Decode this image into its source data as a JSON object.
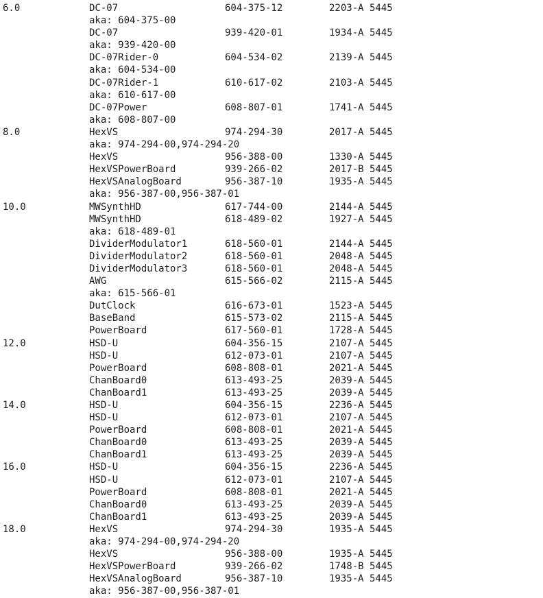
{
  "listing": {
    "slots": [
      {
        "slot": "6.0",
        "lines": [
          {
            "name": "DC-07",
            "part": "604-375-12",
            "serial": "2203-A 5445"
          },
          {
            "name": "aka: 604-375-00"
          },
          {
            "name": "DC-07",
            "part": "939-420-01",
            "serial": "1934-A 5445"
          },
          {
            "name": "aka: 939-420-00"
          },
          {
            "name": "DC-07Rider-0",
            "part": "604-534-02",
            "serial": "2139-A 5445"
          },
          {
            "name": "aka: 604-534-00"
          },
          {
            "name": "DC-07Rider-1",
            "part": "610-617-02",
            "serial": "2103-A 5445"
          },
          {
            "name": "aka: 610-617-00"
          },
          {
            "name": "DC-07Power",
            "part": "608-807-01",
            "serial": "1741-A 5445"
          },
          {
            "name": "aka: 608-807-00"
          }
        ]
      },
      {
        "slot": "8.0",
        "lines": [
          {
            "name": "HexVS",
            "part": "974-294-30",
            "serial": "2017-A 5445"
          },
          {
            "name": "aka: 974-294-00,974-294-20"
          },
          {
            "name": "HexVS",
            "part": "956-388-00",
            "serial": "1330-A 5445"
          },
          {
            "name": "HexVSPowerBoard",
            "part": "939-266-02",
            "serial": "2017-B 5445"
          },
          {
            "name": "HexVSAnalogBoard",
            "part": "956-387-10",
            "serial": "1935-A 5445"
          },
          {
            "name": "aka: 956-387-00,956-387-01"
          }
        ]
      },
      {
        "slot": "10.0",
        "lines": [
          {
            "name": "MWSynthHD",
            "part": "617-744-00",
            "serial": "2144-A 5445"
          },
          {
            "name": "MWSynthHD",
            "part": "618-489-02",
            "serial": "1927-A 5445"
          },
          {
            "name": "aka: 618-489-01"
          },
          {
            "name": "DividerModulator1",
            "part": "618-560-01",
            "serial": "2144-A 5445"
          },
          {
            "name": "DividerModulator2",
            "part": "618-560-01",
            "serial": "2048-A 5445"
          },
          {
            "name": "DividerModulator3",
            "part": "618-560-01",
            "serial": "2048-A 5445"
          },
          {
            "name": "AWG",
            "part": "615-566-02",
            "serial": "2115-A 5445"
          },
          {
            "name": "aka: 615-566-01"
          },
          {
            "name": "DutClock",
            "part": "616-673-01",
            "serial": "1523-A 5445"
          },
          {
            "name": "BaseBand",
            "part": "615-573-02",
            "serial": "2115-A 5445"
          },
          {
            "name": "PowerBoard",
            "part": "617-560-01",
            "serial": "1728-A 5445"
          }
        ]
      },
      {
        "slot": "12.0",
        "lines": [
          {
            "name": "HSD-U",
            "part": "604-356-15",
            "serial": "2107-A 5445"
          },
          {
            "name": "HSD-U",
            "part": "612-073-01",
            "serial": "2107-A 5445"
          },
          {
            "name": "PowerBoard",
            "part": "608-808-01",
            "serial": "2021-A 5445"
          },
          {
            "name": "ChanBoard0",
            "part": "613-493-25",
            "serial": "2039-A 5445"
          },
          {
            "name": "ChanBoard1",
            "part": "613-493-25",
            "serial": "2039-A 5445"
          }
        ]
      },
      {
        "slot": "14.0",
        "lines": [
          {
            "name": "HSD-U",
            "part": "604-356-15",
            "serial": "2236-A 5445"
          },
          {
            "name": "HSD-U",
            "part": "612-073-01",
            "serial": "2107-A 5445"
          },
          {
            "name": "PowerBoard",
            "part": "608-808-01",
            "serial": "2021-A 5445"
          },
          {
            "name": "ChanBoard0",
            "part": "613-493-25",
            "serial": "2039-A 5445"
          },
          {
            "name": "ChanBoard1",
            "part": "613-493-25",
            "serial": "2039-A 5445"
          }
        ]
      },
      {
        "slot": "16.0",
        "lines": [
          {
            "name": "HSD-U",
            "part": "604-356-15",
            "serial": "2236-A 5445"
          },
          {
            "name": "HSD-U",
            "part": "612-073-01",
            "serial": "2107-A 5445"
          },
          {
            "name": "PowerBoard",
            "part": "608-808-01",
            "serial": "2021-A 5445"
          },
          {
            "name": "ChanBoard0",
            "part": "613-493-25",
            "serial": "2039-A 5445"
          },
          {
            "name": "ChanBoard1",
            "part": "613-493-25",
            "serial": "2039-A 5445"
          }
        ]
      },
      {
        "slot": "18.0",
        "lines": [
          {
            "name": "HexVS",
            "part": "974-294-30",
            "serial": "1935-A 5445"
          },
          {
            "name": "aka: 974-294-00,974-294-20"
          },
          {
            "name": "HexVS",
            "part": "956-388-00",
            "serial": "1935-A 5445"
          },
          {
            "name": "HexVSPowerBoard",
            "part": "939-266-02",
            "serial": "1748-B 5445"
          },
          {
            "name": "HexVSAnalogBoard",
            "part": "956-387-10",
            "serial": "1935-A 5445"
          },
          {
            "name": "aka: 956-387-00,956-387-01"
          }
        ]
      }
    ]
  }
}
